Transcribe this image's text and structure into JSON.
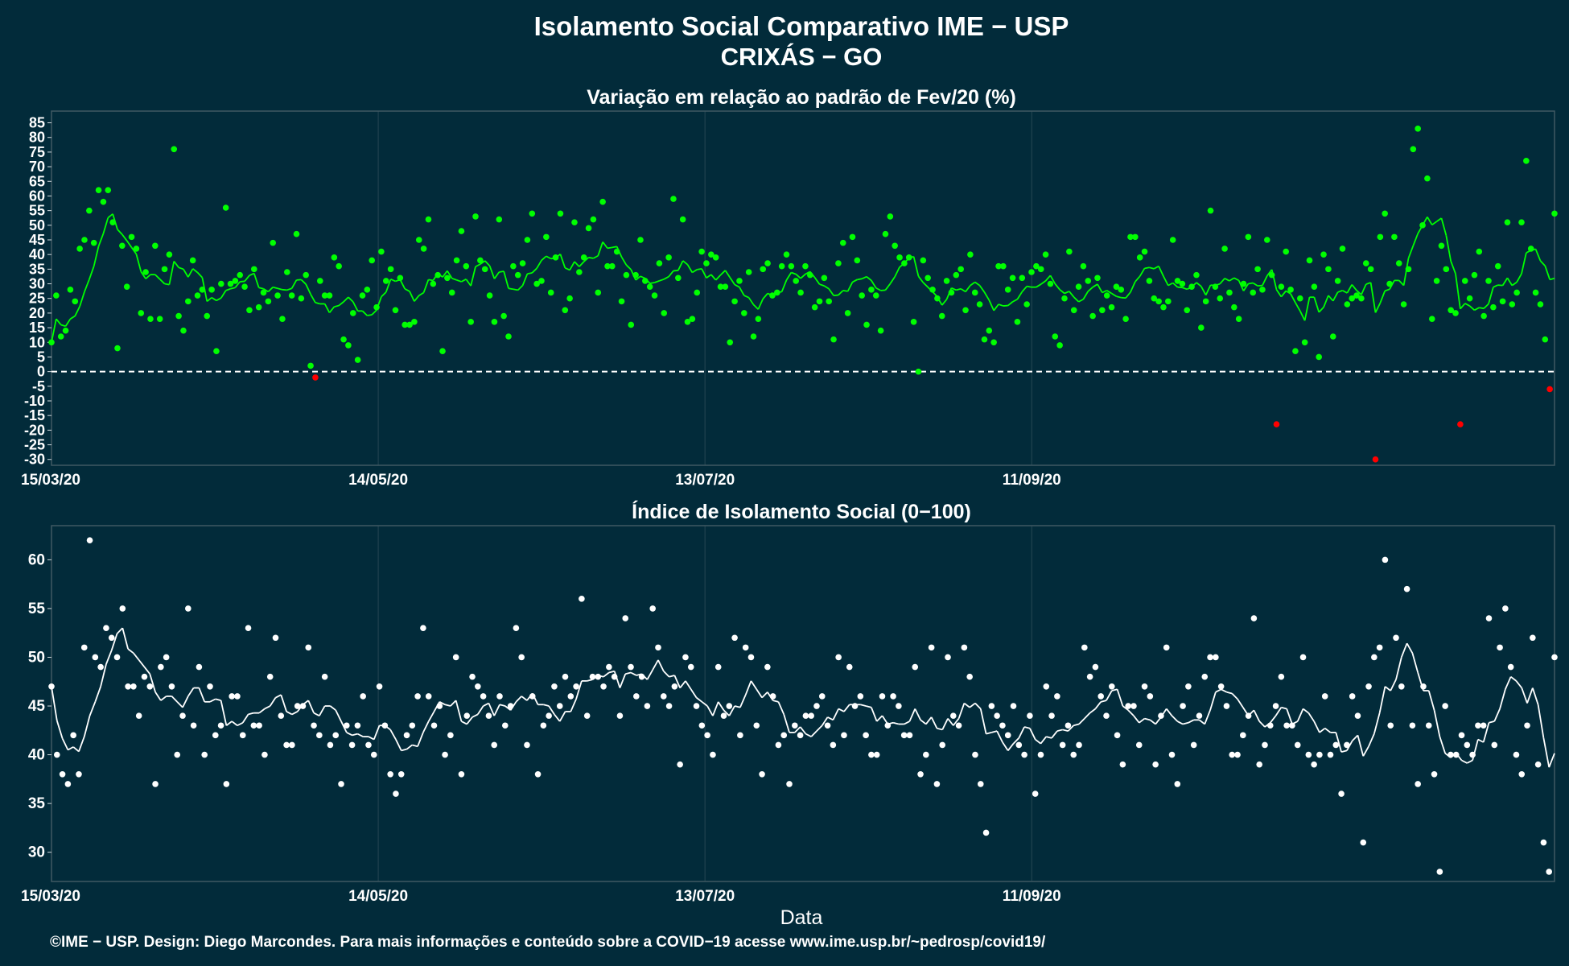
{
  "header": {
    "title": "Isolamento Social Comparativo IME − USP",
    "subtitle": "CRIXÁS − GO"
  },
  "xlabel": "Data",
  "footer": "©IME − USP. Design: Diego Marcondes. Para mais informações e conteúdo sobre a COVID−19 acesse www.ime.usp.br/~pedrosp/covid19/",
  "colors": {
    "background": "#022b3a",
    "positive": "#00ff00",
    "negative": "#ff0000",
    "index": "#ffffff",
    "grid": "#3f5963"
  },
  "chart_data": [
    {
      "type": "scatter",
      "title": "Variação em relação ao padrão de Fev/20 (%)",
      "xlabel": "Data",
      "ylabel": "",
      "x_range": [
        "2020-03-15",
        "2020-12-16"
      ],
      "x_ticks": [
        "15/03/20",
        "14/05/20",
        "13/07/20",
        "11/09/20"
      ],
      "ylim": [
        -32,
        89
      ],
      "y_ticks": [
        -30,
        -25,
        -20,
        -15,
        -10,
        -5,
        0,
        5,
        10,
        15,
        20,
        25,
        30,
        35,
        40,
        45,
        50,
        55,
        60,
        65,
        70,
        75,
        80,
        85
      ],
      "reference_line": 0,
      "legend": "none",
      "series": [
        {
          "values": [
            10,
            26,
            12,
            14,
            28,
            24,
            42,
            45,
            55,
            44,
            62,
            58,
            62,
            51,
            8,
            43,
            29,
            46,
            42,
            20,
            34,
            18,
            43,
            18,
            35,
            40,
            76,
            19,
            14,
            24,
            38,
            26,
            28,
            19,
            28,
            7,
            30,
            56,
            30,
            31,
            33,
            29,
            21,
            35,
            22,
            27,
            24,
            44,
            26,
            18,
            34,
            26,
            47,
            25,
            33,
            2,
            -2,
            31,
            26,
            26,
            39,
            36,
            11,
            9,
            20,
            4,
            26,
            28,
            38,
            22,
            41,
            31,
            35,
            21,
            32,
            16,
            16,
            17,
            45,
            42,
            52,
            30,
            33,
            7,
            32,
            27,
            38,
            48,
            36,
            17,
            53,
            38,
            35,
            26,
            17,
            52,
            19,
            12,
            36,
            33,
            37,
            45,
            54,
            30,
            31,
            46,
            27,
            39,
            54,
            21,
            25,
            51,
            34,
            39,
            49,
            52,
            27,
            58,
            36,
            36,
            41,
            24,
            33,
            16,
            33,
            45,
            31,
            29,
            26,
            37,
            20,
            39,
            59,
            32,
            52,
            17,
            18,
            27,
            41,
            37,
            40,
            39,
            29,
            29,
            10,
            24,
            31,
            20,
            34,
            12,
            18,
            35,
            37,
            26,
            27,
            36,
            40,
            36,
            31,
            27,
            36,
            33,
            22,
            24,
            32,
            24,
            11,
            37,
            44,
            20,
            46,
            38,
            26,
            16,
            28,
            26,
            14,
            47,
            53,
            43,
            39,
            37,
            39,
            17,
            0,
            38,
            32,
            28,
            25,
            19,
            31,
            27,
            33,
            35,
            21,
            40,
            27,
            23,
            11,
            14,
            10,
            36,
            36,
            28,
            32,
            17,
            32,
            23,
            34,
            36,
            35,
            40,
            30,
            12,
            9,
            25,
            41,
            21,
            29,
            36,
            31,
            19,
            32,
            21,
            26,
            22,
            29,
            28,
            18,
            46,
            46,
            39,
            41,
            31,
            25,
            24,
            22,
            24,
            45,
            31,
            30,
            21,
            29,
            33,
            15,
            24,
            55,
            29,
            25,
            42,
            27,
            22,
            18,
            30,
            46,
            27,
            35,
            28,
            45,
            33,
            -18,
            29,
            41,
            28,
            7,
            25,
            10,
            38,
            29,
            5,
            40,
            35,
            12,
            31,
            42,
            23,
            25,
            26,
            25,
            37,
            35,
            -30,
            46,
            54,
            30,
            46,
            37,
            23,
            35,
            76,
            83,
            50,
            66,
            18,
            31,
            43,
            35,
            21,
            20,
            -18,
            31,
            25,
            33,
            41,
            19,
            31,
            22,
            36,
            24,
            51,
            23,
            27,
            51,
            72,
            42,
            27,
            23,
            11,
            -6,
            54
          ]
        }
      ]
    },
    {
      "type": "scatter",
      "title": "Índice de Isolamento Social (0−100)",
      "xlabel": "Data",
      "ylabel": "",
      "x_range": [
        "2020-03-15",
        "2020-12-16"
      ],
      "x_ticks": [
        "15/03/20",
        "14/05/20",
        "13/07/20",
        "11/09/20"
      ],
      "ylim": [
        27,
        63.5
      ],
      "y_ticks": [
        30,
        35,
        40,
        45,
        50,
        55,
        60
      ],
      "legend": "none",
      "series": [
        {
          "values": [
            47,
            40,
            38,
            37,
            42,
            38,
            51,
            62,
            50,
            49,
            53,
            52,
            50,
            55,
            47,
            47,
            44,
            48,
            47,
            37,
            49,
            50,
            47,
            40,
            44,
            55,
            43,
            49,
            40,
            47,
            42,
            43,
            37,
            46,
            46,
            42,
            53,
            43,
            43,
            40,
            48,
            52,
            44,
            41,
            41,
            45,
            45,
            51,
            43,
            42,
            48,
            41,
            42,
            37,
            43,
            41,
            43,
            46,
            41,
            40,
            47,
            43,
            38,
            36,
            38,
            42,
            43,
            46,
            53,
            46,
            43,
            45,
            40,
            42,
            50,
            38,
            44,
            48,
            47,
            46,
            44,
            41,
            46,
            43,
            45,
            53,
            50,
            41,
            46,
            38,
            43,
            44,
            47,
            45,
            48,
            46,
            47,
            56,
            44,
            48,
            48,
            47,
            49,
            48,
            44,
            54,
            49,
            46,
            48,
            45,
            55,
            51,
            46,
            45,
            47,
            39,
            50,
            49,
            45,
            43,
            42,
            40,
            49,
            44,
            45,
            52,
            42,
            51,
            50,
            43,
            38,
            49,
            46,
            41,
            42,
            37,
            43,
            42,
            44,
            44,
            45,
            46,
            43,
            41,
            50,
            42,
            49,
            45,
            46,
            42,
            40,
            40,
            46,
            43,
            46,
            45,
            42,
            42,
            49,
            38,
            40,
            51,
            37,
            41,
            50,
            44,
            43,
            51,
            48,
            40,
            37,
            32,
            45,
            44,
            43,
            42,
            45,
            41,
            40,
            44,
            36,
            40,
            47,
            44,
            46,
            41,
            43,
            40,
            41,
            51,
            48,
            49,
            46,
            44,
            47,
            42,
            39,
            45,
            45,
            41,
            47,
            46,
            39,
            44,
            51,
            40,
            37,
            45,
            47,
            41,
            44,
            48,
            50,
            50,
            47,
            45,
            40,
            40,
            42,
            44,
            54,
            39,
            41,
            43,
            45,
            48,
            43,
            43,
            41,
            50,
            40,
            39,
            40,
            46,
            40,
            41,
            36,
            41,
            46,
            44,
            31,
            47,
            50,
            51,
            60,
            43,
            52,
            47,
            57,
            43,
            37,
            47,
            43,
            38,
            28,
            45,
            40,
            40,
            42,
            41,
            40,
            43,
            43,
            54,
            41,
            51,
            55,
            49,
            40,
            38,
            43,
            52,
            39,
            31,
            28,
            50
          ]
        }
      ]
    }
  ]
}
